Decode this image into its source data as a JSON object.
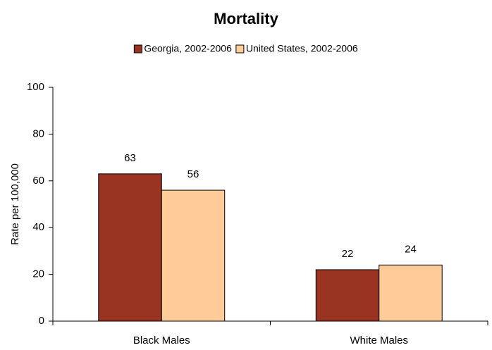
{
  "chart_data": {
    "type": "bar",
    "title": "Mortality",
    "y_label": "Rate per 100,000",
    "categories": [
      "Black Males",
      "White Males"
    ],
    "series": [
      {
        "name": "Georgia, 2002-2006",
        "color": "#993322",
        "values": [
          63,
          22
        ]
      },
      {
        "name": "United States, 2002-2006",
        "color": "#ffcc99",
        "values": [
          56,
          24
        ]
      }
    ],
    "ylim": [
      0,
      100
    ],
    "yticks": [
      0,
      20,
      40,
      60,
      80,
      100
    ],
    "legend": "top",
    "data_labels": true
  }
}
